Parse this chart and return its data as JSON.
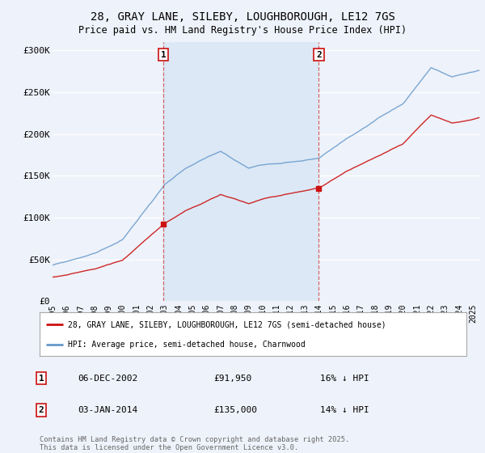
{
  "title_line1": "28, GRAY LANE, SILEBY, LOUGHBOROUGH, LE12 7GS",
  "title_line2": "Price paid vs. HM Land Registry's House Price Index (HPI)",
  "legend_label_red": "28, GRAY LANE, SILEBY, LOUGHBOROUGH, LE12 7GS (semi-detached house)",
  "legend_label_blue": "HPI: Average price, semi-detached house, Charnwood",
  "marker1_date": "06-DEC-2002",
  "marker1_price": 91950,
  "marker1_note": "16% ↓ HPI",
  "marker2_date": "03-JAN-2014",
  "marker2_price": 135000,
  "marker2_note": "14% ↓ HPI",
  "footer": "Contains HM Land Registry data © Crown copyright and database right 2025.\nThis data is licensed under the Open Government Licence v3.0.",
  "ylim": [
    0,
    310000
  ],
  "yticks": [
    0,
    50000,
    100000,
    150000,
    200000,
    250000,
    300000
  ],
  "ytick_labels": [
    "£0",
    "£50K",
    "£100K",
    "£150K",
    "£200K",
    "£250K",
    "£300K"
  ],
  "bg_color": "#eef2fa",
  "plot_bg_color": "#eef2fa",
  "red_color": "#cc1111",
  "blue_color": "#6699cc",
  "shade_color": "#dce8f5",
  "grid_color": "#ffffff",
  "sale1_year_f": 2002.917,
  "sale2_year_f": 2014.0
}
